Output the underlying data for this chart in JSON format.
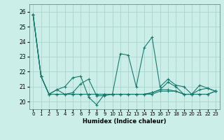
{
  "title": "",
  "xlabel": "Humidex (Indice chaleur)",
  "bg_color": "#cceee8",
  "grid_color": "#aad4ce",
  "line_color": "#1a7a6e",
  "xlim": [
    -0.5,
    23.5
  ],
  "ylim": [
    19.5,
    26.5
  ],
  "xticks": [
    0,
    1,
    2,
    3,
    4,
    5,
    6,
    7,
    8,
    9,
    10,
    11,
    12,
    13,
    14,
    15,
    16,
    17,
    18,
    19,
    20,
    21,
    22,
    23
  ],
  "yticks": [
    20,
    21,
    22,
    23,
    24,
    25,
    26
  ],
  "series": [
    [
      25.8,
      21.7,
      20.5,
      20.8,
      21.0,
      21.6,
      21.7,
      20.3,
      19.8,
      20.5,
      20.5,
      23.2,
      23.1,
      21.0,
      23.6,
      24.3,
      21.0,
      21.5,
      21.1,
      21.0,
      20.5,
      21.1,
      20.9,
      20.7
    ],
    [
      25.8,
      21.7,
      20.5,
      20.8,
      20.5,
      20.6,
      21.2,
      21.5,
      20.4,
      20.4,
      20.5,
      20.5,
      20.5,
      20.5,
      20.5,
      20.6,
      20.8,
      21.3,
      21.0,
      20.5,
      20.5,
      20.8,
      20.9,
      20.7
    ],
    [
      25.8,
      21.7,
      20.5,
      20.5,
      20.5,
      20.5,
      20.5,
      20.5,
      20.5,
      20.5,
      20.5,
      20.5,
      20.5,
      20.5,
      20.5,
      20.6,
      20.8,
      20.8,
      20.7,
      20.5,
      20.5,
      20.5,
      20.5,
      20.7
    ],
    [
      25.8,
      21.7,
      20.5,
      20.5,
      20.5,
      20.5,
      20.5,
      20.5,
      20.5,
      20.5,
      20.5,
      20.5,
      20.5,
      20.5,
      20.5,
      20.5,
      20.7,
      20.7,
      20.7,
      20.5,
      20.5,
      20.5,
      20.5,
      20.7
    ]
  ]
}
